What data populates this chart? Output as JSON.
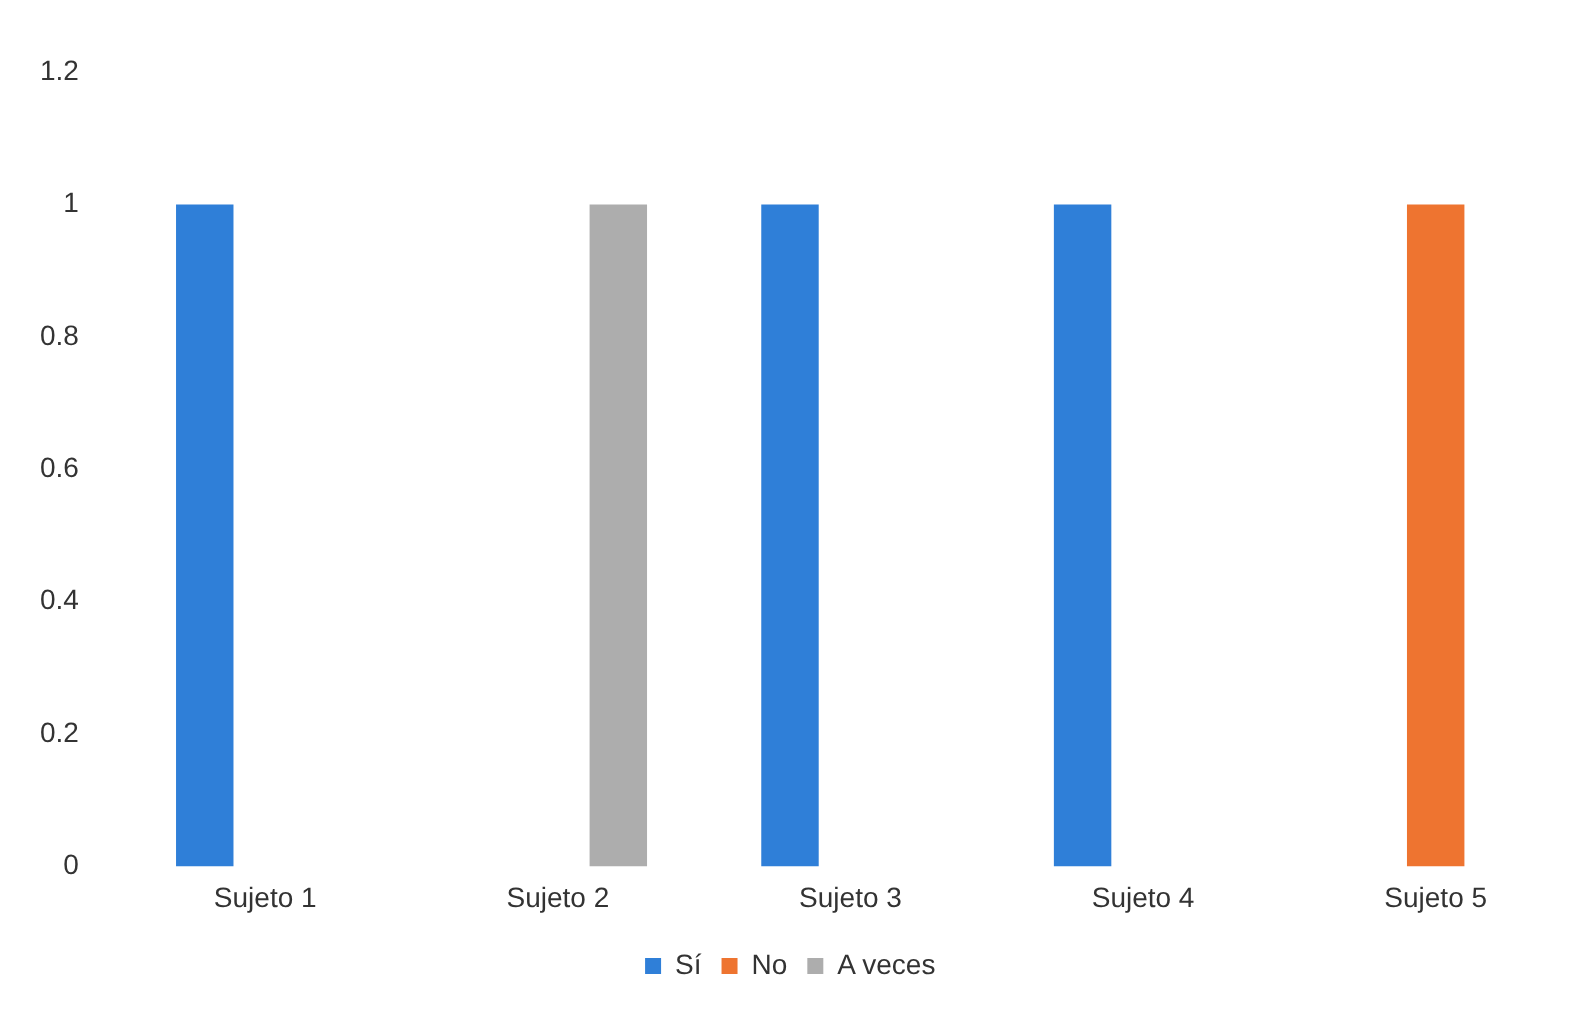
{
  "chart_data": {
    "type": "bar",
    "categories": [
      "Sujeto 1",
      "Sujeto 2",
      "Sujeto 3",
      "Sujeto 4",
      "Sujeto 5"
    ],
    "series": [
      {
        "name": "Sí",
        "color": "#2f7fd8",
        "values": [
          1,
          0,
          1,
          1,
          0
        ]
      },
      {
        "name": "No",
        "color": "#ee7430",
        "values": [
          0,
          0,
          0,
          0,
          1
        ]
      },
      {
        "name": "A veces",
        "color": "#adadad",
        "values": [
          0,
          1,
          0,
          0,
          0
        ]
      }
    ],
    "ylim": [
      0,
      1.2
    ],
    "yticks": [
      0,
      0.2,
      0.4,
      0.6,
      0.8,
      1,
      1.2
    ],
    "grid": false,
    "legend": "bottom"
  }
}
